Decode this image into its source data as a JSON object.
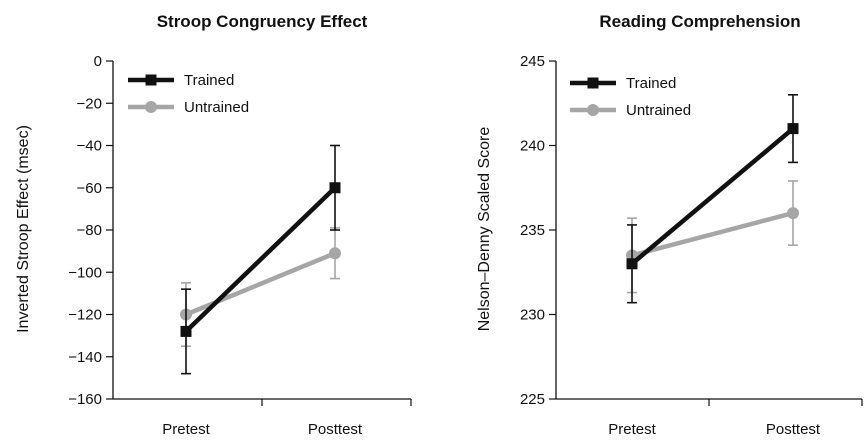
{
  "chart_data": [
    {
      "type": "line",
      "title": "Stroop Congruency Effect",
      "xlabel": "",
      "ylabel": "Inverted Stroop Effect (msec)",
      "categories": [
        "Pretest",
        "Posttest"
      ],
      "ylim": [
        -160,
        0
      ],
      "yticks": [
        0,
        -20,
        -40,
        -60,
        -80,
        -100,
        -120,
        -140,
        -160
      ],
      "ytick_labels": [
        "0",
        "−20",
        "−40",
        "−60",
        "−80",
        "−100",
        "−120",
        "−140",
        "−160"
      ],
      "legend_position": "top-left",
      "series": [
        {
          "name": "Trained",
          "values": [
            -128,
            -60
          ],
          "error": [
            20,
            20
          ],
          "color": "#111111",
          "marker": "square"
        },
        {
          "name": "Untrained",
          "values": [
            -120,
            -91
          ],
          "error": [
            15,
            12
          ],
          "color": "#a6a6a6",
          "marker": "circle"
        }
      ]
    },
    {
      "type": "line",
      "title": "Reading Comprehension",
      "xlabel": "",
      "ylabel": "Nelson–Denny Scaled Score",
      "categories": [
        "Pretest",
        "Posttest"
      ],
      "ylim": [
        225,
        245
      ],
      "yticks": [
        225,
        230,
        235,
        240,
        245
      ],
      "ytick_labels": [
        "225",
        "230",
        "235",
        "240",
        "245"
      ],
      "legend_position": "top-left",
      "series": [
        {
          "name": "Trained",
          "values": [
            233,
            241
          ],
          "error": [
            2.3,
            2.0
          ],
          "color": "#111111",
          "marker": "square"
        },
        {
          "name": "Untrained",
          "values": [
            233.5,
            236
          ],
          "error": [
            2.2,
            1.9
          ],
          "color": "#a6a6a6",
          "marker": "circle"
        }
      ]
    }
  ]
}
